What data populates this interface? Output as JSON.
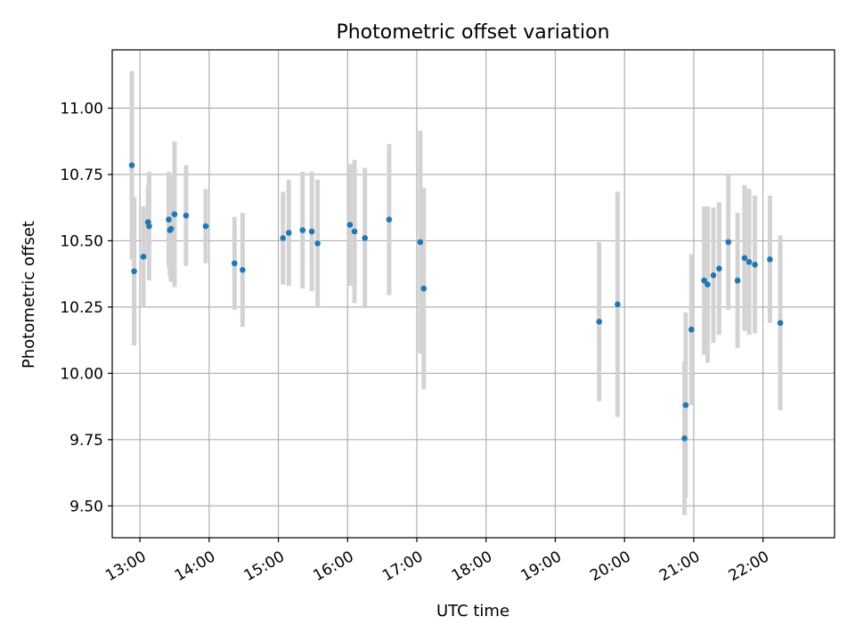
{
  "chart_data": {
    "type": "scatter",
    "title": "Photometric offset variation",
    "xlabel": "UTC time",
    "ylabel": "Photometric offset",
    "x_ticks": [
      "13:00",
      "14:00",
      "15:00",
      "16:00",
      "17:00",
      "18:00",
      "19:00",
      "20:00",
      "21:00",
      "22:00"
    ],
    "y_ticks": [
      "9.50",
      "9.75",
      "10.00",
      "10.25",
      "10.50",
      "10.75",
      "11.00"
    ],
    "xlim": [
      "12:36",
      "23:02"
    ],
    "ylim": [
      9.38,
      11.22
    ],
    "grid": true,
    "error_bars": true,
    "marker_color": "#1f77b4",
    "errorbar_color": "#d3d3d3",
    "series": [
      {
        "points": [
          {
            "x": "12:53",
            "y": 10.785,
            "err": 0.355
          },
          {
            "x": "12:55",
            "y": 10.385,
            "err": 0.28
          },
          {
            "x": "13:03",
            "y": 10.44,
            "err": 0.19
          },
          {
            "x": "13:07",
            "y": 10.57,
            "err": 0.14
          },
          {
            "x": "13:08",
            "y": 10.555,
            "err": 0.205
          },
          {
            "x": "13:25",
            "y": 10.58,
            "err": 0.18
          },
          {
            "x": "13:26",
            "y": 10.54,
            "err": 0.175
          },
          {
            "x": "13:27",
            "y": 10.545,
            "err": 0.2
          },
          {
            "x": "13:30",
            "y": 10.6,
            "err": 0.275
          },
          {
            "x": "13:40",
            "y": 10.595,
            "err": 0.19
          },
          {
            "x": "13:57",
            "y": 10.555,
            "err": 0.14
          },
          {
            "x": "14:22",
            "y": 10.415,
            "err": 0.175
          },
          {
            "x": "14:29",
            "y": 10.39,
            "err": 0.215
          },
          {
            "x": "15:04",
            "y": 10.51,
            "err": 0.175
          },
          {
            "x": "15:09",
            "y": 10.53,
            "err": 0.2
          },
          {
            "x": "15:21",
            "y": 10.54,
            "err": 0.22
          },
          {
            "x": "15:29",
            "y": 10.535,
            "err": 0.225
          },
          {
            "x": "15:34",
            "y": 10.49,
            "err": 0.24
          },
          {
            "x": "16:02",
            "y": 10.56,
            "err": 0.23
          },
          {
            "x": "16:06",
            "y": 10.535,
            "err": 0.27
          },
          {
            "x": "16:15",
            "y": 10.51,
            "err": 0.265
          },
          {
            "x": "16:36",
            "y": 10.58,
            "err": 0.285
          },
          {
            "x": "17:03",
            "y": 10.495,
            "err": 0.42
          },
          {
            "x": "17:06",
            "y": 10.32,
            "err": 0.38
          },
          {
            "x": "19:38",
            "y": 10.195,
            "err": 0.3
          },
          {
            "x": "19:54",
            "y": 10.26,
            "err": 0.425
          },
          {
            "x": "20:52",
            "y": 9.755,
            "err": 0.29
          },
          {
            "x": "20:53",
            "y": 9.88,
            "err": 0.35
          },
          {
            "x": "20:58",
            "y": 10.165,
            "err": 0.285
          },
          {
            "x": "21:09",
            "y": 10.35,
            "err": 0.28
          },
          {
            "x": "21:12",
            "y": 10.335,
            "err": 0.295
          },
          {
            "x": "21:17",
            "y": 10.37,
            "err": 0.255
          },
          {
            "x": "21:22",
            "y": 10.395,
            "err": 0.25
          },
          {
            "x": "21:30",
            "y": 10.495,
            "err": 0.255
          },
          {
            "x": "21:38",
            "y": 10.35,
            "err": 0.255
          },
          {
            "x": "21:44",
            "y": 10.435,
            "err": 0.275
          },
          {
            "x": "21:48",
            "y": 10.42,
            "err": 0.275
          },
          {
            "x": "21:53",
            "y": 10.41,
            "err": 0.26
          },
          {
            "x": "22:06",
            "y": 10.43,
            "err": 0.24
          },
          {
            "x": "22:15",
            "y": 10.19,
            "err": 0.33
          }
        ]
      }
    ]
  }
}
